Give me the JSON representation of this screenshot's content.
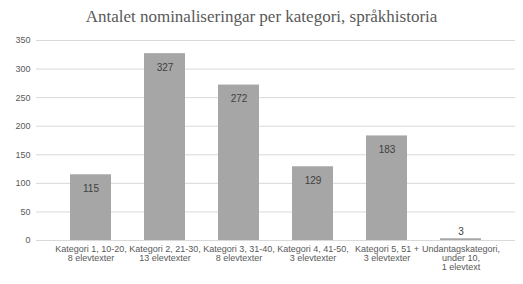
{
  "chart_data": {
    "type": "bar",
    "title": "Antalet nominaliseringar per kategori, språkhistoria",
    "categories": [
      "Kategori 1, 10-20,\n8 elevtexter",
      "Kategori 2, 21-30,\n13 elevtexter",
      "Kategori 3, 31-40,\n8 elevtexter",
      "Kategori 4, 41-50,\n3 elevtexter",
      "Kategori 5, 51 +\n3 elevtexter",
      "Undantagskategori,\nunder 10,\n1 elevtext"
    ],
    "values": [
      115,
      327,
      272,
      129,
      183,
      3
    ],
    "color": "#a6a6a6",
    "ylim": [
      0,
      350
    ],
    "yticks": [
      0,
      50,
      100,
      150,
      200,
      250,
      300,
      350
    ],
    "grid": true,
    "data_labels": true
  }
}
